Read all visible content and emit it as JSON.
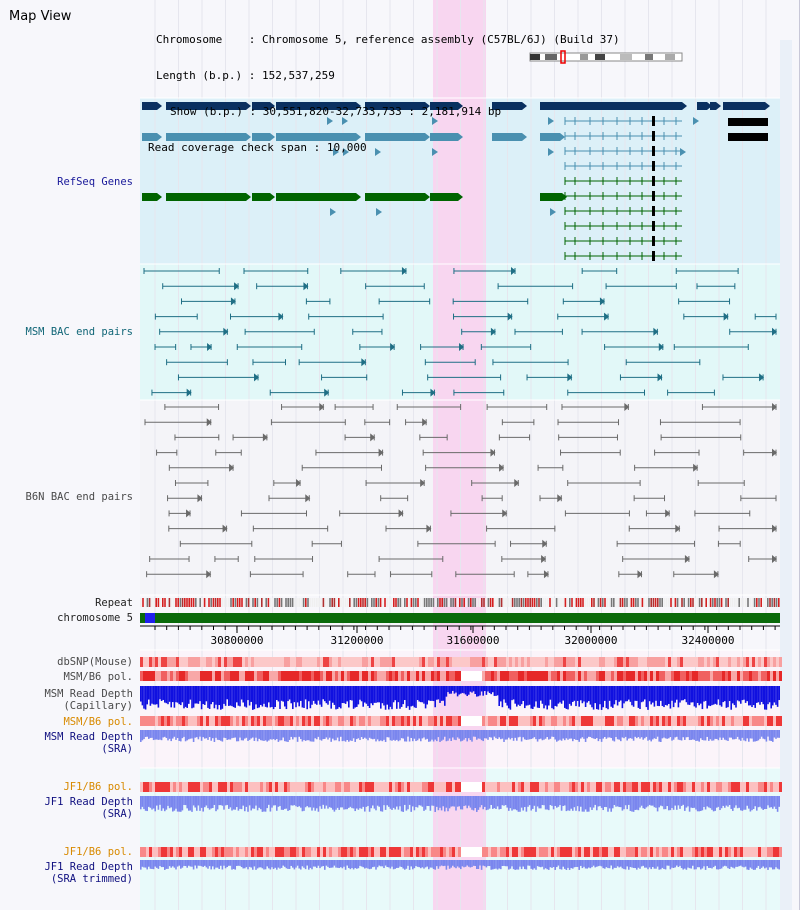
{
  "map_view": {
    "title": "Map View",
    "chromosome_label": "Chromosome",
    "chromosome_value": "Chromosome 5, reference assembly (C57BL/6J) (Build 37)",
    "length_label": "Length (b.p.)",
    "length_value": "152,537,259",
    "show_label": "Show (b.p.)",
    "show_value": "30,551,820-32,733,733 : 2,181,914 bp",
    "coverage_label": "Read coverage check span",
    "coverage_value": "10,000"
  },
  "tracks": {
    "refseq": "RefSeq Genes",
    "msm_bac": "MSM BAC end pairs",
    "b6n_bac": "B6N BAC end pairs",
    "repeat": "Repeat",
    "chromosome": "chromosome 5",
    "dbsnp": "dbSNP(Mouse)",
    "msm_b6_pol_1": "MSM/B6 pol.",
    "msm_read_depth_cap_1": "MSM Read Depth",
    "msm_read_depth_cap_2": "(Capillary)",
    "msm_b6_pol_2": "MSM/B6 pol.",
    "msm_read_depth_sra_1": "MSM Read Depth",
    "msm_read_depth_sra_2": "(SRA)",
    "jf1_b6_pol_1": "JF1/B6 pol.",
    "jf1_read_depth_sra_1": "JF1 Read Depth",
    "jf1_read_depth_sra_2": "(SRA)",
    "jf1_b6_pol_2": "JF1/B6 pol.",
    "jf1_read_depth_trim_1": "JF1 Read Depth",
    "jf1_read_depth_trim_2": "(SRA trimmed)"
  },
  "axis": {
    "ticks": [
      "30800000",
      "31200000",
      "31600000",
      "32000000",
      "32400000"
    ]
  },
  "colors": {
    "highlight": "#f8d6f0",
    "refseq_bg": "#dcf0f8",
    "msm_bg": "#e2f8f8",
    "b6n_bg": "#f4f4f8",
    "gene_navy": "#0a3060",
    "gene_steel": "#4a90b0",
    "gene_green": "#006400",
    "depth_blue": "#1010e0",
    "depth_periwinkle": "#7a86ee",
    "pol_red": "#ee3333"
  }
}
